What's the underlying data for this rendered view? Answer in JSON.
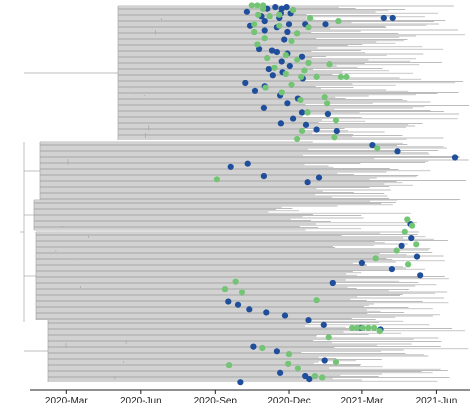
{
  "chart_data": {
    "type": "scatter",
    "subtype": "time-scaled phylogenetic tree with tip points",
    "title": "",
    "xlabel": "",
    "ylabel": "",
    "x_axis": {
      "type": "date",
      "range": [
        "2019-12-20",
        "2021-07-10"
      ],
      "ticks": [
        "2020-Mar",
        "2020-Jun",
        "2020-Sep",
        "2020-Dec",
        "2021-Mar",
        "2021-Jun"
      ],
      "tick_dates": [
        "2020-03-01",
        "2020-06-01",
        "2020-09-01",
        "2020-12-01",
        "2021-03-01",
        "2021-06-01"
      ]
    },
    "y_axis": {
      "shown": false
    },
    "legend": "none",
    "grid": false,
    "colors": {
      "branches": "#a6a6a6",
      "series_blue": "#1f4e9b",
      "series_green": "#74c476",
      "axis": "#222222"
    },
    "series": [
      {
        "color": "#1f4e9b",
        "points": [
          {
            "x": "2020-11-14",
            "y": 2
          },
          {
            "x": "2020-11-28",
            "y": 2
          },
          {
            "x": "2020-11-04",
            "y": 3
          },
          {
            "x": "2020-11-22",
            "y": 3
          },
          {
            "x": "2020-10-10",
            "y": 5
          },
          {
            "x": "2020-11-21",
            "y": 6
          },
          {
            "x": "2020-12-03",
            "y": 6
          },
          {
            "x": "2020-10-28",
            "y": 8
          },
          {
            "x": "2020-11-19",
            "y": 9
          },
          {
            "x": "2021-03-28",
            "y": 9
          },
          {
            "x": "2021-04-08",
            "y": 9
          },
          {
            "x": "2020-11-01",
            "y": 11
          },
          {
            "x": "2020-12-01",
            "y": 13
          },
          {
            "x": "2020-12-21",
            "y": 13
          },
          {
            "x": "2021-01-15",
            "y": 13
          },
          {
            "x": "2020-10-14",
            "y": 14
          },
          {
            "x": "2020-11-16",
            "y": 15
          },
          {
            "x": "2020-11-01",
            "y": 17
          },
          {
            "x": "2020-11-29",
            "y": 18
          },
          {
            "x": "2020-11-25",
            "y": 23
          },
          {
            "x": "2020-10-25",
            "y": 29
          },
          {
            "x": "2020-11-10",
            "y": 30
          },
          {
            "x": "2020-11-16",
            "y": 31
          },
          {
            "x": "2020-11-29",
            "y": 32
          },
          {
            "x": "2020-12-17",
            "y": 34
          },
          {
            "x": "2020-11-22",
            "y": 37
          },
          {
            "x": "2020-12-02",
            "y": 40
          },
          {
            "x": "2020-11-06",
            "y": 42
          },
          {
            "x": "2020-11-23",
            "y": 44
          },
          {
            "x": "2020-11-11",
            "y": 46
          },
          {
            "x": "2020-12-18",
            "y": 48
          },
          {
            "x": "2020-10-08",
            "y": 51
          },
          {
            "x": "2020-11-01",
            "y": 53
          },
          {
            "x": "2020-10-20",
            "y": 56
          },
          {
            "x": "2020-11-20",
            "y": 59
          },
          {
            "x": "2020-12-12",
            "y": 61
          },
          {
            "x": "2020-11-29",
            "y": 64
          },
          {
            "x": "2020-10-31",
            "y": 67
          },
          {
            "x": "2020-12-17",
            "y": 70
          },
          {
            "x": "2021-01-18",
            "y": 71
          },
          {
            "x": "2020-12-06",
            "y": 74
          },
          {
            "x": "2020-11-21",
            "y": 77
          },
          {
            "x": "2020-12-22",
            "y": 78
          },
          {
            "x": "2021-01-04",
            "y": 81
          },
          {
            "x": "2021-01-29",
            "y": 82
          },
          {
            "x": "2021-03-14",
            "y": 91
          },
          {
            "x": "2021-04-14",
            "y": 95
          },
          {
            "x": "2021-06-24",
            "y": 99
          },
          {
            "x": "2020-10-11",
            "y": 103
          },
          {
            "x": "2020-09-20",
            "y": 105
          },
          {
            "x": "2020-10-31",
            "y": 111
          },
          {
            "x": "2020-12-24",
            "y": 115
          },
          {
            "x": "2021-01-07",
            "y": 112
          },
          {
            "x": "2021-04-30",
            "y": 142
          },
          {
            "x": "2021-05-01",
            "y": 151
          },
          {
            "x": "2021-04-19",
            "y": 156
          },
          {
            "x": "2021-05-08",
            "y": 163
          },
          {
            "x": "2021-03-01",
            "y": 167
          },
          {
            "x": "2021-04-07",
            "y": 171
          },
          {
            "x": "2021-05-12",
            "y": 175
          },
          {
            "x": "2021-01-24",
            "y": 180
          },
          {
            "x": "2020-09-17",
            "y": 192
          },
          {
            "x": "2020-09-29",
            "y": 194
          },
          {
            "x": "2020-10-13",
            "y": 197
          },
          {
            "x": "2020-11-03",
            "y": 199
          },
          {
            "x": "2020-11-26",
            "y": 201
          },
          {
            "x": "2020-12-25",
            "y": 204
          },
          {
            "x": "2021-01-13",
            "y": 207
          },
          {
            "x": "2021-02-28",
            "y": 209
          },
          {
            "x": "2021-03-24",
            "y": 210
          },
          {
            "x": "2020-10-18",
            "y": 221
          },
          {
            "x": "2020-11-16",
            "y": 224
          },
          {
            "x": "2021-01-14",
            "y": 230
          },
          {
            "x": "2020-11-20",
            "y": 238
          },
          {
            "x": "2020-12-21",
            "y": 240
          },
          {
            "x": "2020-12-26",
            "y": 242
          },
          {
            "x": "2020-10-02",
            "y": 244
          }
        ]
      },
      {
        "color": "#74c476",
        "points": [
          {
            "x": "2020-10-16",
            "y": 1
          },
          {
            "x": "2020-10-23",
            "y": 1
          },
          {
            "x": "2020-10-30",
            "y": 1
          },
          {
            "x": "2020-10-30",
            "y": 3
          },
          {
            "x": "2020-12-06",
            "y": 4
          },
          {
            "x": "2020-10-24",
            "y": 7
          },
          {
            "x": "2020-11-19",
            "y": 7
          },
          {
            "x": "2020-11-07",
            "y": 8
          },
          {
            "x": "2020-12-27",
            "y": 9
          },
          {
            "x": "2021-01-31",
            "y": 11
          },
          {
            "x": "2020-10-19",
            "y": 13
          },
          {
            "x": "2020-11-19",
            "y": 14
          },
          {
            "x": "2020-12-25",
            "y": 15
          },
          {
            "x": "2020-10-19",
            "y": 18
          },
          {
            "x": "2020-12-11",
            "y": 19
          },
          {
            "x": "2020-11-01",
            "y": 22
          },
          {
            "x": "2020-12-04",
            "y": 24
          },
          {
            "x": "2020-10-23",
            "y": 26
          },
          {
            "x": "2020-11-27",
            "y": 33
          },
          {
            "x": "2020-11-04",
            "y": 35
          },
          {
            "x": "2020-12-11",
            "y": 36
          },
          {
            "x": "2020-12-25",
            "y": 38
          },
          {
            "x": "2021-01-20",
            "y": 39
          },
          {
            "x": "2020-11-13",
            "y": 41
          },
          {
            "x": "2020-12-20",
            "y": 43
          },
          {
            "x": "2020-11-27",
            "y": 45
          },
          {
            "x": "2020-12-16",
            "y": 47
          },
          {
            "x": "2021-01-04",
            "y": 47
          },
          {
            "x": "2021-02-03",
            "y": 47
          },
          {
            "x": "2021-02-10",
            "y": 47
          },
          {
            "x": "2020-12-04",
            "y": 52
          },
          {
            "x": "2020-11-02",
            "y": 54
          },
          {
            "x": "2020-11-22",
            "y": 57
          },
          {
            "x": "2021-01-14",
            "y": 60
          },
          {
            "x": "2020-12-15",
            "y": 62
          },
          {
            "x": "2021-01-17",
            "y": 64
          },
          {
            "x": "2020-12-24",
            "y": 70
          },
          {
            "x": "2021-01-28",
            "y": 75
          },
          {
            "x": "2020-12-17",
            "y": 82
          },
          {
            "x": "2021-01-26",
            "y": 86
          },
          {
            "x": "2020-12-11",
            "y": 87
          },
          {
            "x": "2021-03-20",
            "y": 93
          },
          {
            "x": "2020-09-03",
            "y": 113
          },
          {
            "x": "2021-04-26",
            "y": 139
          },
          {
            "x": "2021-05-02",
            "y": 143
          },
          {
            "x": "2021-04-23",
            "y": 147
          },
          {
            "x": "2021-05-07",
            "y": 155
          },
          {
            "x": "2021-04-13",
            "y": 159
          },
          {
            "x": "2021-03-18",
            "y": 164
          },
          {
            "x": "2021-04-27",
            "y": 168
          },
          {
            "x": "2020-09-26",
            "y": 179
          },
          {
            "x": "2020-09-13",
            "y": 184
          },
          {
            "x": "2020-10-04",
            "y": 186
          },
          {
            "x": "2021-01-04",
            "y": 191
          },
          {
            "x": "2021-02-17",
            "y": 209
          },
          {
            "x": "2021-02-23",
            "y": 209
          },
          {
            "x": "2021-03-02",
            "y": 209
          },
          {
            "x": "2021-03-09",
            "y": 209
          },
          {
            "x": "2021-03-16",
            "y": 209
          },
          {
            "x": "2021-03-23",
            "y": 211
          },
          {
            "x": "2021-01-19",
            "y": 215
          },
          {
            "x": "2020-10-29",
            "y": 222
          },
          {
            "x": "2020-12-01",
            "y": 226
          },
          {
            "x": "2021-01-28",
            "y": 231
          },
          {
            "x": "2020-11-30",
            "y": 232
          },
          {
            "x": "2020-12-12",
            "y": 235
          },
          {
            "x": "2021-01-02",
            "y": 240
          },
          {
            "x": "2021-01-11",
            "y": 241
          },
          {
            "x": "2020-09-18",
            "y": 233
          }
        ]
      }
    ]
  }
}
